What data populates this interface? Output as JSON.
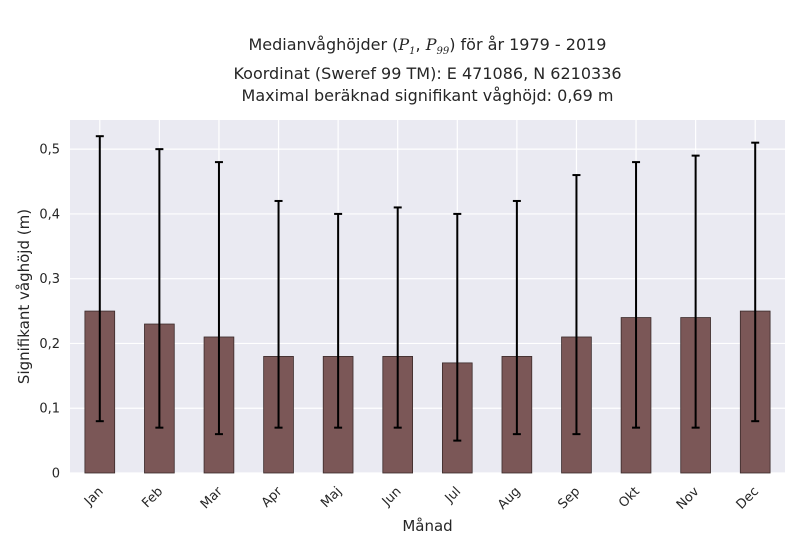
{
  "chart_data": {
    "type": "bar",
    "title": {
      "line1_prefix": "Medianvåghöjder (",
      "p1": "P",
      "p1_sub": "1",
      "sep": ", ",
      "p99": "P",
      "p99_sub": "99",
      "line1_suffix": ") för år 1979 - 2019",
      "line2": "Koordinat (Sweref 99 TM): E 471086, N 6210336",
      "line3": "Maximal beräknad signifikant våghöjd: 0,69 m"
    },
    "xlabel": "Månad",
    "ylabel": "Signifikant våghöjd (m)",
    "categories": [
      "Jan",
      "Feb",
      "Mar",
      "Apr",
      "Maj",
      "Jun",
      "Jul",
      "Aug",
      "Sep",
      "Okt",
      "Nov",
      "Dec"
    ],
    "series": [
      {
        "values": [
          0.25,
          0.23,
          0.21,
          0.18,
          0.18,
          0.18,
          0.17,
          0.18,
          0.21,
          0.24,
          0.24,
          0.25
        ],
        "p1": [
          0.08,
          0.07,
          0.06,
          0.07,
          0.07,
          0.07,
          0.05,
          0.06,
          0.06,
          0.07,
          0.07,
          0.08
        ],
        "p99": [
          0.52,
          0.5,
          0.48,
          0.42,
          0.4,
          0.41,
          0.4,
          0.42,
          0.46,
          0.48,
          0.49,
          0.51
        ]
      }
    ],
    "ylim": [
      0,
      0.545
    ],
    "yticks": [
      {
        "value": 0,
        "label": "0"
      },
      {
        "value": 0.1,
        "label": "0,1"
      },
      {
        "value": 0.2,
        "label": "0,2"
      },
      {
        "value": 0.3,
        "label": "0,3"
      },
      {
        "value": 0.4,
        "label": "0,4"
      },
      {
        "value": 0.5,
        "label": "0,5"
      }
    ],
    "grid": true,
    "colors": {
      "bar": "#7b5757",
      "bar_edge": "#3a2a2a",
      "error": "#000000",
      "plot_bg": "#eaeaf2",
      "grid": "#ffffff"
    }
  }
}
